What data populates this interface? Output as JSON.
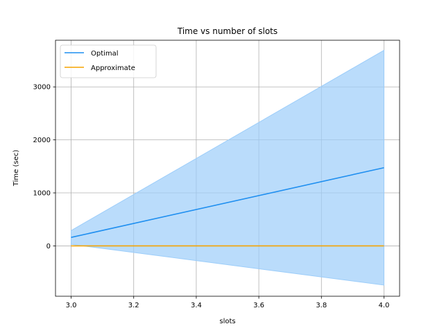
{
  "chart_data": {
    "type": "line",
    "title": "Time vs number of slots",
    "xlabel": "slots",
    "ylabel": "Time (sec)",
    "xlim": [
      2.95,
      4.05
    ],
    "ylim": [
      -950,
      3880
    ],
    "xticks": [
      3.0,
      3.2,
      3.4,
      3.6,
      3.8,
      4.0
    ],
    "xtick_labels": [
      "3.0",
      "3.2",
      "3.4",
      "3.6",
      "3.8",
      "4.0"
    ],
    "yticks": [
      0,
      1000,
      2000,
      3000
    ],
    "ytick_labels": [
      "0",
      "1000",
      "2000",
      "3000"
    ],
    "grid": true,
    "legend_position": "top-left",
    "series": [
      {
        "name": "Optimal",
        "color": "#1f8ff0",
        "x": [
          3.0,
          4.0
        ],
        "y": [
          160,
          1475
        ],
        "band": {
          "lower": [
            30,
            -740
          ],
          "upper": [
            290,
            3690
          ],
          "color": "#9ccdfa"
        }
      },
      {
        "name": "Approximate",
        "color": "#f5a300",
        "x": [
          3.0,
          4.0
        ],
        "y": [
          0,
          0
        ]
      }
    ]
  }
}
